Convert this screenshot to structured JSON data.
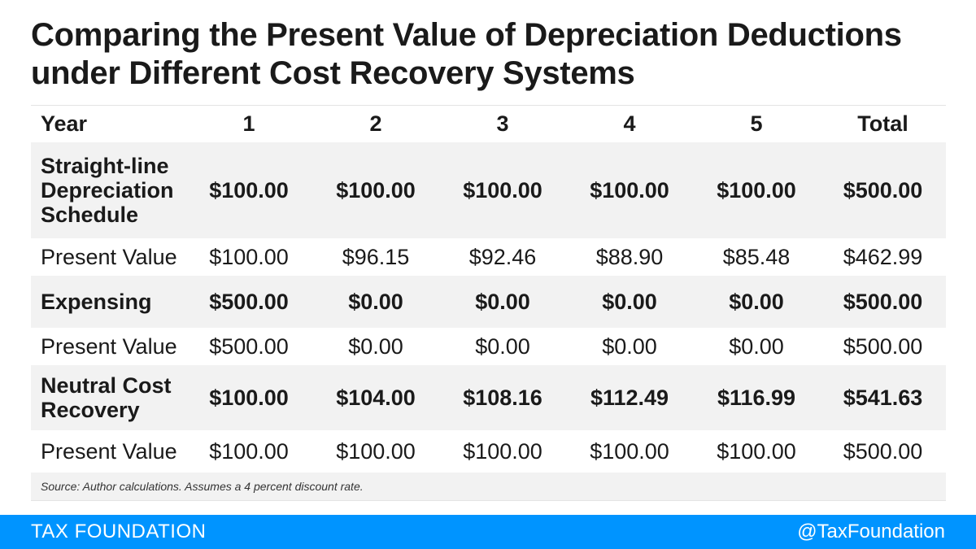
{
  "title": "Comparing the Present Value of Depreciation Deductions under Different Cost Recovery Systems",
  "chart_data": {
    "type": "table",
    "columns": [
      "Year",
      "1",
      "2",
      "3",
      "4",
      "5",
      "Total"
    ],
    "rows": [
      {
        "label": "Straight-line Depreciation Schedule",
        "bold": true,
        "shaded": true,
        "cells": [
          "$100.00",
          "$100.00",
          "$100.00",
          "$100.00",
          "$100.00",
          "$500.00"
        ]
      },
      {
        "label": "Present Value",
        "bold": false,
        "shaded": false,
        "cells": [
          "$100.00",
          "$96.15",
          "$92.46",
          "$88.90",
          "$85.48",
          "$462.99"
        ]
      },
      {
        "label": "Expensing",
        "bold": true,
        "shaded": true,
        "cells": [
          "$500.00",
          "$0.00",
          "$0.00",
          "$0.00",
          "$0.00",
          "$500.00"
        ]
      },
      {
        "label": "Present Value",
        "bold": false,
        "shaded": false,
        "cells": [
          "$500.00",
          "$0.00",
          "$0.00",
          "$0.00",
          "$0.00",
          "$500.00"
        ]
      },
      {
        "label": "Neutral Cost Recovery",
        "bold": true,
        "shaded": true,
        "cells": [
          "$100.00",
          "$104.00",
          "$108.16",
          "$112.49",
          "$116.99",
          "$541.63"
        ]
      },
      {
        "label": "Present Value",
        "bold": false,
        "shaded": false,
        "cells": [
          "$100.00",
          "$100.00",
          "$100.00",
          "$100.00",
          "$100.00",
          "$500.00"
        ]
      }
    ]
  },
  "source": "Source: Author calculations. Assumes a 4 percent discount rate.",
  "footer": {
    "brand": "TAX FOUNDATION",
    "handle": "@TaxFoundation"
  },
  "colors": {
    "footer_bg": "#0094ff",
    "row_shade": "#f2f2f2",
    "text": "#1a1a1a"
  }
}
